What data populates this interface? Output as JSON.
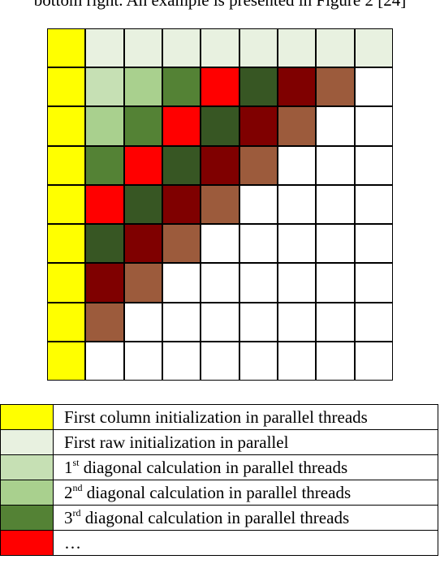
{
  "header_text": "bottom right. An example is presented in Figure 2 [24]",
  "colors": {
    "Y": "#ffff00",
    "L": "#e8f1e0",
    "d1": "#c6e0b4",
    "d2": "#a9d08e",
    "d3": "#548235",
    "R": "#ff0000",
    "DG": "#375623",
    "M": "#7f0000",
    "B": "#9c5b3c",
    "W": "#ffffff"
  },
  "grid": [
    [
      "Y",
      "L",
      "L",
      "L",
      "L",
      "L",
      "L",
      "L",
      "L"
    ],
    [
      "Y",
      "d1",
      "d2",
      "d3",
      "R",
      "DG",
      "M",
      "B",
      "W"
    ],
    [
      "Y",
      "d2",
      "d3",
      "R",
      "DG",
      "M",
      "B",
      "W",
      "W"
    ],
    [
      "Y",
      "d3",
      "R",
      "DG",
      "M",
      "B",
      "W",
      "W",
      "W"
    ],
    [
      "Y",
      "R",
      "DG",
      "M",
      "B",
      "W",
      "W",
      "W",
      "W"
    ],
    [
      "Y",
      "DG",
      "M",
      "B",
      "W",
      "W",
      "W",
      "W",
      "W"
    ],
    [
      "Y",
      "M",
      "B",
      "W",
      "W",
      "W",
      "W",
      "W",
      "W"
    ],
    [
      "Y",
      "B",
      "W",
      "W",
      "W",
      "W",
      "W",
      "W",
      "W"
    ],
    [
      "Y",
      "W",
      "W",
      "W",
      "W",
      "W",
      "W",
      "W",
      "W"
    ]
  ],
  "legend": [
    {
      "color": "#ffff00",
      "text": "First column initialization in parallel threads"
    },
    {
      "color": "#e8f1e0",
      "text": "First raw initialization in parallel"
    },
    {
      "color": "#c6e0b4",
      "pre": "1",
      "sup": "st",
      "text": " diagonal calculation in parallel threads"
    },
    {
      "color": "#a9d08e",
      "pre": "2",
      "sup": "nd",
      "text": " diagonal calculation in parallel threads"
    },
    {
      "color": "#548235",
      "pre": "3",
      "sup": "rd",
      "text": " diagonal calculation in parallel threads"
    },
    {
      "color": "#ff0000",
      "text": "…"
    }
  ]
}
